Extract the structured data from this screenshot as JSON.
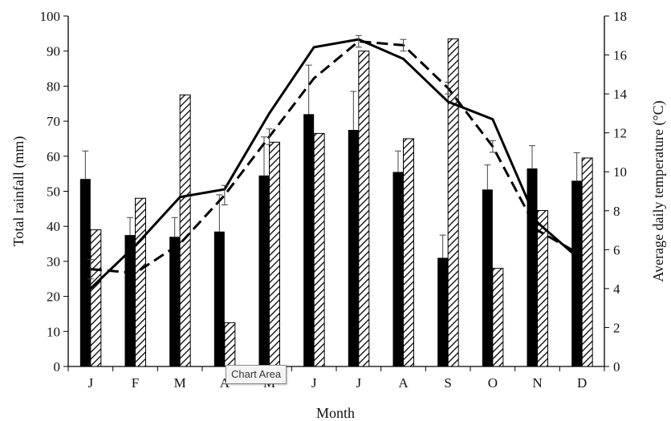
{
  "chart_data": {
    "type": "bar",
    "categories": [
      "J",
      "F",
      "M",
      "A",
      "M",
      "J",
      "J",
      "A",
      "S",
      "O",
      "N",
      "D"
    ],
    "xlabel": "Month",
    "ylabel": "Total rainfall (mm)",
    "y2label": "Average daily temperature (°C)",
    "ylim": [
      0,
      100
    ],
    "y2lim": [
      0,
      18
    ],
    "yticks": [
      "0",
      "10",
      "20",
      "30",
      "40",
      "50",
      "60",
      "70",
      "80",
      "90",
      "100"
    ],
    "y2ticks": [
      "0",
      "2",
      "4",
      "6",
      "8",
      "10",
      "12",
      "14",
      "16",
      "18"
    ],
    "grid": false,
    "series": [
      {
        "style": "solid-bar",
        "axis": "left",
        "values": [
          53.5,
          37.5,
          37,
          38.5,
          54.5,
          72,
          67.5,
          55.5,
          31,
          50.5,
          56.5,
          53
        ],
        "error": [
          8,
          5,
          5.5,
          10.5,
          11,
          14,
          11,
          6,
          6.5,
          7,
          6.5,
          8
        ]
      },
      {
        "style": "hatched-bar",
        "axis": "left",
        "values": [
          39,
          48,
          77.5,
          12.5,
          64,
          66.5,
          90,
          65,
          93.5,
          28,
          44.5,
          59.5
        ]
      },
      {
        "style": "solid-line",
        "axis": "right",
        "values": [
          4.0,
          6.2,
          8.7,
          9.1,
          13.0,
          16.4,
          16.8,
          15.8,
          13.6,
          12.7,
          7.4,
          5.4
        ]
      },
      {
        "style": "dashed-line",
        "axis": "right",
        "values": [
          5.0,
          4.8,
          6.3,
          8.8,
          11.8,
          14.8,
          16.7,
          16.5,
          14.3,
          11.3,
          7.0,
          5.7
        ],
        "error": [
          0.5,
          0,
          0,
          0.5,
          0.4,
          0,
          0.3,
          0.3,
          0.3,
          0.3,
          0,
          0
        ]
      }
    ]
  },
  "tooltip": {
    "label": "Chart Area"
  }
}
